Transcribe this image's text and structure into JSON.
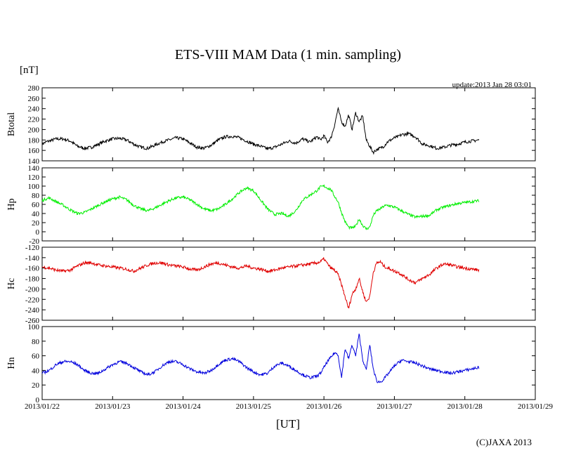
{
  "chart_data": {
    "type": "line",
    "title": "ETS-VIII MAM Data (1 min. sampling)",
    "unit": "[nT]",
    "update": "update:2013 Jan 28 03:01",
    "xlabel": "[UT]",
    "copyright": "(C)JAXA 2013",
    "x_ticks": [
      "2013/01/22",
      "2013/01/23",
      "2013/01/24",
      "2013/01/25",
      "2013/01/26",
      "2013/01/27",
      "2013/01/28",
      "2013/01/29"
    ],
    "xlim": [
      0,
      7
    ],
    "panels": [
      {
        "name": "Btotal",
        "color": "#000000",
        "ylim": [
          140,
          280
        ],
        "y_ticks": [
          "280",
          "260",
          "240",
          "220",
          "200",
          "180",
          "160",
          "140"
        ],
        "x": [
          0,
          0.05,
          0.1,
          0.2,
          0.3,
          0.4,
          0.5,
          0.6,
          0.7,
          0.8,
          0.9,
          1.0,
          1.1,
          1.2,
          1.3,
          1.4,
          1.5,
          1.6,
          1.7,
          1.8,
          1.9,
          2.0,
          2.1,
          2.2,
          2.3,
          2.4,
          2.5,
          2.6,
          2.7,
          2.8,
          2.9,
          3.0,
          3.1,
          3.2,
          3.3,
          3.4,
          3.5,
          3.6,
          3.7,
          3.8,
          3.9,
          3.95,
          4.0,
          4.05,
          4.1,
          4.15,
          4.2,
          4.25,
          4.3,
          4.35,
          4.4,
          4.45,
          4.5,
          4.55,
          4.6,
          4.65,
          4.7,
          4.75,
          4.8,
          4.85,
          4.9,
          4.95,
          5.0,
          5.05,
          5.1,
          5.2,
          5.3,
          5.4,
          5.5,
          5.6,
          5.7,
          5.8,
          5.9,
          6.0,
          6.1,
          6.2
        ],
        "values": [
          172,
          176,
          178,
          182,
          182,
          178,
          168,
          164,
          166,
          172,
          178,
          182,
          183,
          180,
          172,
          166,
          164,
          170,
          176,
          180,
          184,
          182,
          174,
          166,
          164,
          170,
          180,
          186,
          187,
          184,
          178,
          172,
          168,
          163,
          166,
          172,
          178,
          174,
          182,
          176,
          186,
          180,
          188,
          176,
          184,
          208,
          240,
          215,
          206,
          228,
          200,
          232,
          215,
          226,
          180,
          168,
          156,
          162,
          164,
          168,
          176,
          180,
          184,
          186,
          190,
          192,
          186,
          172,
          169,
          164,
          166,
          170,
          172,
          176,
          178,
          180
        ],
        "noise": 3
      },
      {
        "name": "Hp",
        "color": "#00ee00",
        "ylim": [
          -20,
          140
        ],
        "y_ticks": [
          "140",
          "120",
          "100",
          "80",
          "60",
          "40",
          "20",
          "0",
          "-20"
        ],
        "x": [
          0,
          0.05,
          0.1,
          0.2,
          0.3,
          0.4,
          0.5,
          0.6,
          0.7,
          0.8,
          0.9,
          1.0,
          1.1,
          1.2,
          1.3,
          1.4,
          1.5,
          1.6,
          1.7,
          1.8,
          1.9,
          2.0,
          2.1,
          2.2,
          2.3,
          2.4,
          2.5,
          2.6,
          2.7,
          2.8,
          2.9,
          3.0,
          3.1,
          3.2,
          3.3,
          3.4,
          3.5,
          3.6,
          3.7,
          3.8,
          3.9,
          3.95,
          4.0,
          4.05,
          4.1,
          4.15,
          4.2,
          4.25,
          4.3,
          4.35,
          4.4,
          4.45,
          4.5,
          4.55,
          4.6,
          4.65,
          4.7,
          4.75,
          4.8,
          4.85,
          4.9,
          4.95,
          5.0,
          5.05,
          5.1,
          5.2,
          5.3,
          5.4,
          5.5,
          5.6,
          5.7,
          5.8,
          5.9,
          6.0,
          6.1,
          6.2
        ],
        "values": [
          68,
          72,
          74,
          66,
          58,
          48,
          40,
          42,
          50,
          58,
          66,
          72,
          76,
          70,
          58,
          50,
          46,
          52,
          60,
          68,
          74,
          76,
          70,
          60,
          50,
          46,
          50,
          60,
          72,
          86,
          96,
          90,
          70,
          50,
          38,
          40,
          34,
          46,
          70,
          80,
          90,
          98,
          100,
          96,
          92,
          78,
          66,
          42,
          22,
          10,
          8,
          12,
          28,
          14,
          6,
          10,
          36,
          46,
          50,
          56,
          58,
          56,
          54,
          50,
          46,
          38,
          32,
          34,
          36,
          48,
          54,
          58,
          62,
          64,
          66,
          68
        ],
        "noise": 3
      },
      {
        "name": "Hc",
        "color": "#e00000",
        "ylim": [
          -260,
          -120
        ],
        "y_ticks": [
          "-120",
          "-140",
          "-160",
          "-180",
          "-200",
          "-220",
          "-240",
          "-260"
        ],
        "x": [
          0,
          0.1,
          0.2,
          0.3,
          0.4,
          0.5,
          0.6,
          0.7,
          0.8,
          0.9,
          1.0,
          1.1,
          1.2,
          1.3,
          1.4,
          1.5,
          1.6,
          1.7,
          1.8,
          1.9,
          2.0,
          2.1,
          2.2,
          2.3,
          2.4,
          2.5,
          2.6,
          2.7,
          2.8,
          2.9,
          3.0,
          3.1,
          3.2,
          3.3,
          3.4,
          3.5,
          3.6,
          3.7,
          3.8,
          3.9,
          3.95,
          4.0,
          4.05,
          4.1,
          4.15,
          4.2,
          4.25,
          4.3,
          4.35,
          4.4,
          4.45,
          4.5,
          4.55,
          4.6,
          4.65,
          4.7,
          4.75,
          4.8,
          4.85,
          4.9,
          4.95,
          5.0,
          5.05,
          5.1,
          5.2,
          5.3,
          5.4,
          5.5,
          5.6,
          5.7,
          5.8,
          5.9,
          6.0,
          6.1,
          6.2
        ],
        "values": [
          -158,
          -160,
          -164,
          -166,
          -164,
          -156,
          -150,
          -150,
          -154,
          -156,
          -158,
          -160,
          -162,
          -166,
          -160,
          -154,
          -150,
          -150,
          -154,
          -156,
          -158,
          -162,
          -164,
          -158,
          -152,
          -150,
          -154,
          -158,
          -160,
          -156,
          -160,
          -162,
          -166,
          -164,
          -160,
          -158,
          -156,
          -154,
          -152,
          -150,
          -148,
          -142,
          -152,
          -160,
          -164,
          -172,
          -192,
          -215,
          -238,
          -210,
          -200,
          -180,
          -205,
          -225,
          -215,
          -168,
          -150,
          -148,
          -156,
          -160,
          -162,
          -166,
          -168,
          -172,
          -182,
          -188,
          -180,
          -172,
          -160,
          -152,
          -154,
          -158,
          -160,
          -162,
          -164
        ],
        "noise": 3
      },
      {
        "name": "Hn",
        "color": "#0000dd",
        "ylim": [
          0,
          100
        ],
        "y_ticks": [
          "100",
          "80",
          "60",
          "40",
          "20",
          "0"
        ],
        "x": [
          0,
          0.05,
          0.1,
          0.2,
          0.3,
          0.4,
          0.5,
          0.6,
          0.7,
          0.8,
          0.9,
          1.0,
          1.1,
          1.2,
          1.3,
          1.4,
          1.5,
          1.6,
          1.7,
          1.8,
          1.9,
          2.0,
          2.1,
          2.2,
          2.3,
          2.4,
          2.5,
          2.6,
          2.7,
          2.8,
          2.9,
          3.0,
          3.1,
          3.2,
          3.3,
          3.4,
          3.5,
          3.6,
          3.7,
          3.8,
          3.9,
          3.95,
          4.0,
          4.05,
          4.1,
          4.15,
          4.2,
          4.25,
          4.3,
          4.35,
          4.4,
          4.45,
          4.5,
          4.55,
          4.6,
          4.65,
          4.7,
          4.75,
          4.8,
          4.85,
          4.9,
          4.95,
          5.0,
          5.05,
          5.1,
          5.2,
          5.3,
          5.4,
          5.5,
          5.6,
          5.7,
          5.8,
          5.9,
          6.0,
          6.1,
          6.2
        ],
        "values": [
          36,
          38,
          40,
          48,
          52,
          52,
          48,
          40,
          36,
          36,
          42,
          48,
          52,
          50,
          44,
          38,
          34,
          38,
          46,
          52,
          52,
          48,
          42,
          38,
          36,
          40,
          48,
          54,
          56,
          52,
          44,
          38,
          34,
          36,
          46,
          50,
          46,
          40,
          34,
          30,
          32,
          36,
          44,
          52,
          58,
          64,
          62,
          30,
          70,
          56,
          75,
          60,
          90,
          55,
          40,
          75,
          42,
          25,
          24,
          28,
          34,
          40,
          46,
          50,
          54,
          52,
          50,
          46,
          42,
          40,
          38,
          36,
          38,
          40,
          42,
          44
        ],
        "noise": 2
      }
    ]
  }
}
